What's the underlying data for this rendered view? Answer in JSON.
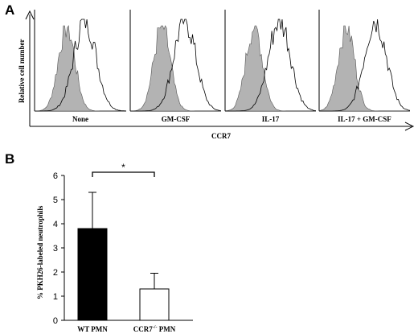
{
  "panels": {
    "a": {
      "letter": "A"
    },
    "b": {
      "letter": "B"
    }
  },
  "chart_data": [
    {
      "type": "histogram-overlay",
      "panel": "A",
      "ylabel": "Relative cell number",
      "xlabel": "CCR7",
      "conditions": [
        {
          "label": "None",
          "filled_peak_x": 0.35,
          "open_peak_x": 0.55
        },
        {
          "label": "GM-CSF",
          "filled_peak_x": 0.35,
          "open_peak_x": 0.6
        },
        {
          "label": "IL-17",
          "filled_peak_x": 0.32,
          "open_peak_x": 0.6
        },
        {
          "label": "IL-17 + GM-CSF",
          "filled_peak_x": 0.3,
          "open_peak_x": 0.62
        }
      ],
      "colors": {
        "filled": "#b3b3b3",
        "open_line": "#000000"
      }
    },
    {
      "type": "bar",
      "panel": "B",
      "ylabel": "% PKH26-labeled neutrophils",
      "categories": [
        "WT PMN",
        "CCR7"
      ],
      "category_superscript": [
        "",
        "-/-"
      ],
      "category_suffix": [
        "",
        " PMN"
      ],
      "values": [
        3.8,
        1.3
      ],
      "errors": [
        1.5,
        0.65
      ],
      "ylim": [
        0,
        6
      ],
      "yticks": [
        0,
        1,
        2,
        3,
        4,
        5,
        6
      ],
      "significance": {
        "symbol": "*",
        "between": [
          0,
          1
        ]
      },
      "colors": {
        "bar0": "#000000",
        "bar1": "#ffffff"
      }
    }
  ]
}
